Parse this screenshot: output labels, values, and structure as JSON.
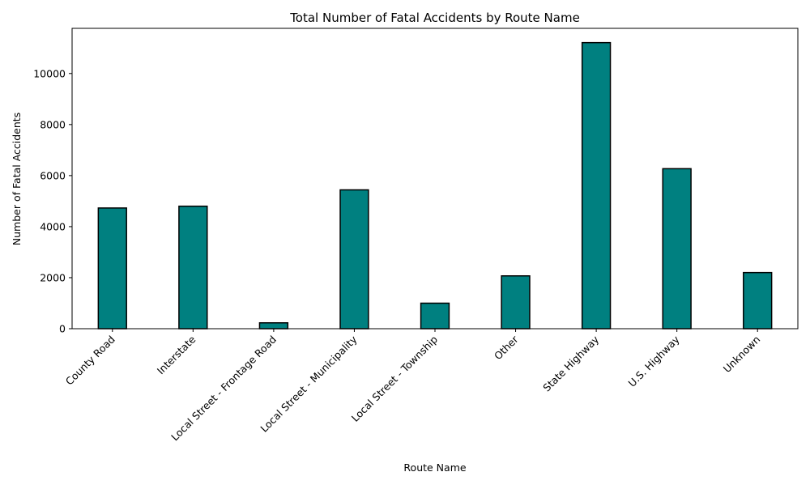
{
  "chart_data": {
    "type": "bar",
    "title": "Total Number of Fatal Accidents by Route Name",
    "xlabel": "Route Name",
    "ylabel": "Number of Fatal Accidents",
    "categories": [
      "County Road",
      "Interstate",
      "Local Street - Frontage Road",
      "Local Street - Municipality",
      "Local Street - Township",
      "Other",
      "State Highway",
      "U.S. Highway",
      "Unknown"
    ],
    "values": [
      4730,
      4800,
      230,
      5440,
      1000,
      2070,
      11210,
      6270,
      2200
    ],
    "ylim": [
      0,
      11770
    ],
    "yticks": [
      0,
      2000,
      4000,
      6000,
      8000,
      10000
    ],
    "bar_color": "#008080",
    "edge_color": "#000000",
    "grid": false,
    "legend": "none"
  }
}
